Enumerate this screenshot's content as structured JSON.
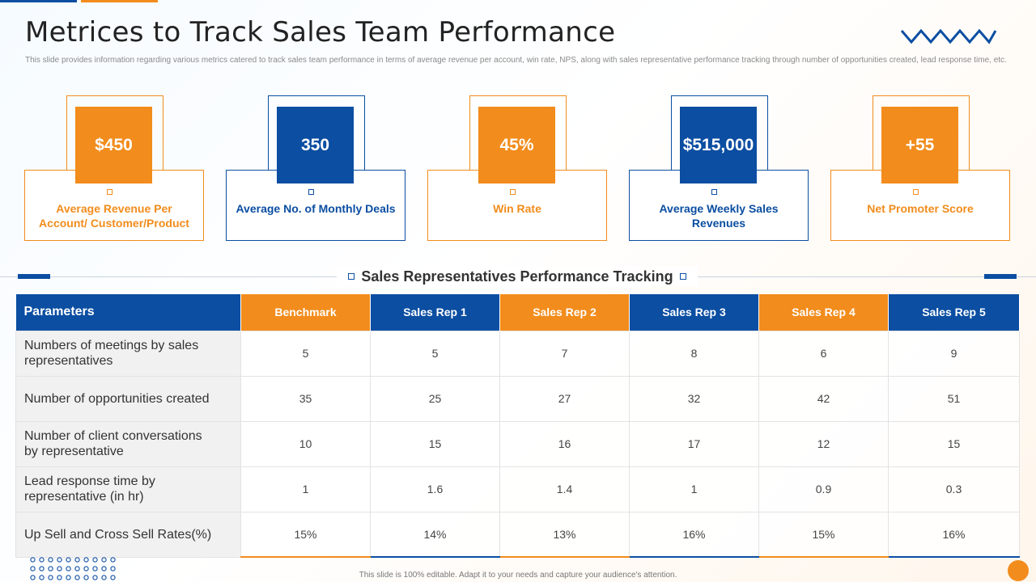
{
  "title": "Metrices to Track Sales Team Performance",
  "subtitle": "This slide provides information regarding various metrics catered to track sales team performance in terms of average revenue per account, win rate, NPS,  along with sales representative performance tracking through number of opportunities created, lead response time, etc.",
  "colors": {
    "primary_blue": "#0b4ea2",
    "accent_orange": "#f28c1c"
  },
  "metrics": [
    {
      "value": "$450",
      "label": "Average Revenue Per Account/  Customer/Product",
      "color": "orange"
    },
    {
      "value": "350",
      "label": "Average No. of Monthly Deals",
      "color": "blue"
    },
    {
      "value": "45%",
      "label": "Win Rate",
      "color": "orange"
    },
    {
      "value": "$515,000",
      "label": "Average Weekly Sales Revenues",
      "color": "blue"
    },
    {
      "value": "+55",
      "label": "Net Promoter Score",
      "color": "orange"
    }
  ],
  "section_title": "Sales Representatives Performance Tracking",
  "table": {
    "headers": [
      "Parameters",
      "Benchmark",
      "Sales Rep 1",
      "Sales Rep 2",
      "Sales Rep 3",
      "Sales Rep 4",
      "Sales Rep 5"
    ],
    "rows": [
      [
        "Numbers of meetings by sales representatives",
        "5",
        "5",
        "7",
        "8",
        "6",
        "9"
      ],
      [
        "Number of opportunities created",
        "35",
        "25",
        "27",
        "32",
        "42",
        "51"
      ],
      [
        "Number of client conversations by representative",
        "10",
        "15",
        "16",
        "17",
        "12",
        "15"
      ],
      [
        "Lead response time by representative (in hr)",
        "1",
        "1.6",
        "1.4",
        "1",
        "0.9",
        "0.3"
      ],
      [
        "Up Sell and Cross Sell Rates(%)",
        "15%",
        "14%",
        "13%",
        "16%",
        "15%",
        "16%"
      ]
    ]
  },
  "footer": "This slide is 100% editable.  Adapt it to your needs and capture your audience's attention."
}
